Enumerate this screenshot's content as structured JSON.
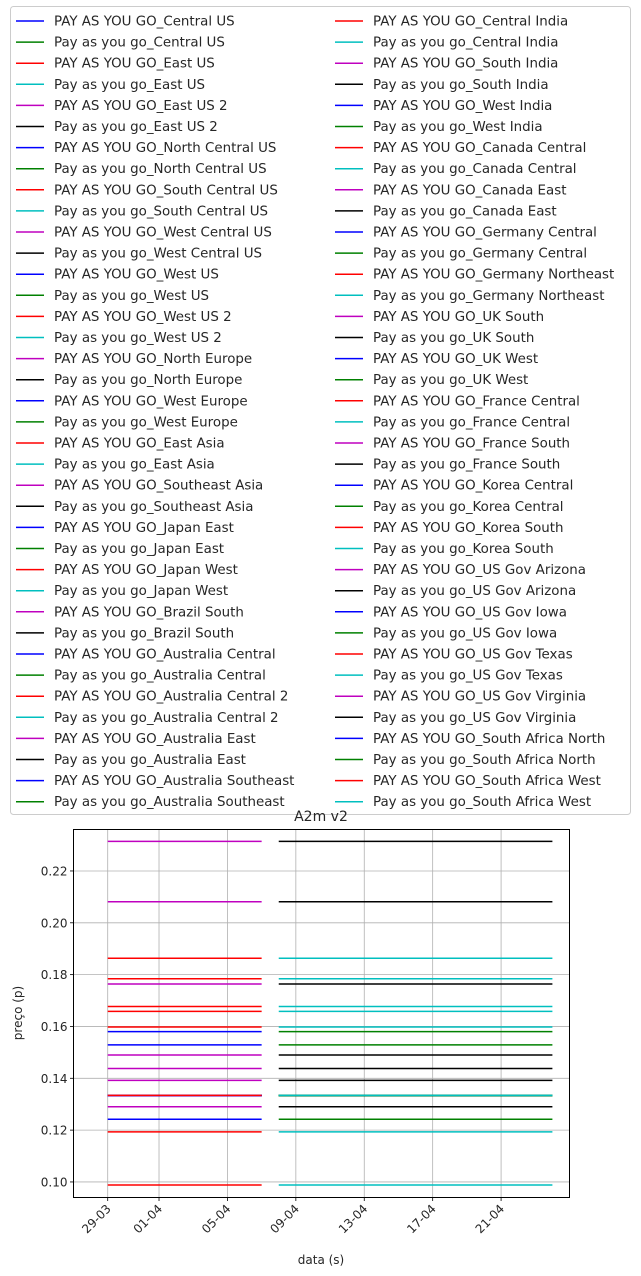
{
  "chart_data": {
    "type": "line",
    "title": "A2m v2",
    "xlabel": "data (s)",
    "ylabel": "preço (p)",
    "ylim": [
      0.094,
      0.236
    ],
    "yticks": [
      0.1,
      0.12,
      0.14,
      0.16,
      0.18,
      0.2,
      0.22
    ],
    "ytick_labels": [
      "0.10",
      "0.12",
      "0.14",
      "0.16",
      "0.18",
      "0.20",
      "0.22"
    ],
    "xlim": [
      "2023-03-27",
      "2023-04-25"
    ],
    "xticks": [
      "2023-03-29",
      "2023-04-01",
      "2023-04-05",
      "2023-04-09",
      "2023-04-13",
      "2023-04-17",
      "2023-04-21"
    ],
    "xtick_labels": [
      "29-03",
      "01-04",
      "05-04",
      "09-04",
      "13-04",
      "17-04",
      "21-04"
    ],
    "grid": true,
    "legend_placement": "above plot, 2 columns",
    "segment_dates": {
      "pay_as_you_go_upper": [
        "2023-03-29",
        "2023-04-07"
      ],
      "pay_as_you_go_lower": [
        "2023-04-08",
        "2023-04-24"
      ]
    },
    "colors": {
      "blue": "#0000ff",
      "green": "#008000",
      "red": "#ff0000",
      "cyan": "#00bfbf",
      "magenta": "#bf00bf",
      "black": "#000000"
    },
    "series": [
      {
        "name": "PAY AS YOU GO_Central US",
        "color": "blue",
        "value": 0.1334
      },
      {
        "name": "Pay as you go_Central US",
        "color": "green",
        "value": 0.1334
      },
      {
        "name": "PAY AS YOU GO_East US",
        "color": "red",
        "value": 0.1334
      },
      {
        "name": "Pay as you go_East US",
        "color": "cyan",
        "value": 0.1334
      },
      {
        "name": "PAY AS YOU GO_East US 2",
        "color": "magenta",
        "value": 0.1334
      },
      {
        "name": "Pay as you go_East US 2",
        "color": "black",
        "value": 0.1334
      },
      {
        "name": "PAY AS YOU GO_North Central US",
        "color": "blue",
        "value": 0.1334
      },
      {
        "name": "Pay as you go_North Central US",
        "color": "green",
        "value": 0.1334
      },
      {
        "name": "PAY AS YOU GO_South Central US",
        "color": "red",
        "value": 0.1334
      },
      {
        "name": "Pay as you go_South Central US",
        "color": "cyan",
        "value": 0.1334
      },
      {
        "name": "PAY AS YOU GO_West Central US",
        "color": "magenta",
        "value": 0.1334
      },
      {
        "name": "Pay as you go_West Central US",
        "color": "black",
        "value": 0.1334
      },
      {
        "name": "PAY AS YOU GO_West US",
        "color": "blue",
        "value": 0.1334
      },
      {
        "name": "Pay as you go_West US",
        "color": "green",
        "value": 0.1334
      },
      {
        "name": "PAY AS YOU GO_West US 2",
        "color": "red",
        "value": 0.1334
      },
      {
        "name": "Pay as you go_West US 2",
        "color": "cyan",
        "value": 0.1334
      },
      {
        "name": "PAY AS YOU GO_North Europe",
        "color": "magenta",
        "value": 0.1392
      },
      {
        "name": "Pay as you go_North Europe",
        "color": "black",
        "value": 0.1392
      },
      {
        "name": "PAY AS YOU GO_West Europe",
        "color": "blue",
        "value": 0.1529
      },
      {
        "name": "Pay as you go_West Europe",
        "color": "green",
        "value": 0.1529
      },
      {
        "name": "PAY AS YOU GO_East Asia",
        "color": "red",
        "value": 0.1784
      },
      {
        "name": "Pay as you go_East Asia",
        "color": "cyan",
        "value": 0.1784
      },
      {
        "name": "PAY AS YOU GO_Southeast Asia",
        "color": "magenta",
        "value": 0.1764
      },
      {
        "name": "Pay as you go_Southeast Asia",
        "color": "black",
        "value": 0.1764
      },
      {
        "name": "PAY AS YOU GO_Japan East",
        "color": "blue",
        "value": 0.158
      },
      {
        "name": "Pay as you go_Japan East",
        "color": "green",
        "value": 0.158
      },
      {
        "name": "PAY AS YOU GO_Japan West",
        "color": "red",
        "value": 0.1863
      },
      {
        "name": "Pay as you go_Japan West",
        "color": "cyan",
        "value": 0.1863
      },
      {
        "name": "PAY AS YOU GO_Brazil South",
        "color": "magenta",
        "value": 0.2314
      },
      {
        "name": "Pay as you go_Brazil South",
        "color": "black",
        "value": 0.2314
      },
      {
        "name": "PAY AS YOU GO_Australia Central",
        "color": "blue",
        "value": 0.1334
      },
      {
        "name": "Pay as you go_Australia Central",
        "color": "green",
        "value": 0.1334
      },
      {
        "name": "PAY AS YOU GO_Australia Central 2",
        "color": "red",
        "value": 0.1598
      },
      {
        "name": "Pay as you go_Australia Central 2",
        "color": "cyan",
        "value": 0.1598
      },
      {
        "name": "PAY AS YOU GO_Australia East",
        "color": "magenta",
        "value": 0.149
      },
      {
        "name": "Pay as you go_Australia East",
        "color": "black",
        "value": 0.149
      },
      {
        "name": "PAY AS YOU GO_Australia Southeast",
        "color": "blue",
        "value": 0.1334
      },
      {
        "name": "Pay as you go_Australia Southeast",
        "color": "green",
        "value": 0.1334
      },
      {
        "name": "PAY AS YOU GO_Central India",
        "color": "red",
        "value": 0.1193
      },
      {
        "name": "Pay as you go_Central India",
        "color": "cyan",
        "value": 0.1193
      },
      {
        "name": "PAY AS YOU GO_South India",
        "color": "magenta",
        "value": 0.1334
      },
      {
        "name": "Pay as you go_South India",
        "color": "black",
        "value": 0.1334
      },
      {
        "name": "PAY AS YOU GO_West India",
        "color": "blue",
        "value": 0.1242
      },
      {
        "name": "Pay as you go_West India",
        "color": "green",
        "value": 0.1242
      },
      {
        "name": "PAY AS YOU GO_Canada Central",
        "color": "red",
        "value": 0.1334
      },
      {
        "name": "Pay as you go_Canada Central",
        "color": "cyan",
        "value": 0.1334
      },
      {
        "name": "PAY AS YOU GO_Canada East",
        "color": "magenta",
        "value": 0.1334
      },
      {
        "name": "Pay as you go_Canada East",
        "color": "black",
        "value": 0.1334
      },
      {
        "name": "PAY AS YOU GO_Germany Central",
        "color": "blue",
        "value": 0.1334
      },
      {
        "name": "Pay as you go_Germany Central",
        "color": "green",
        "value": 0.1334
      },
      {
        "name": "PAY AS YOU GO_Germany Northeast",
        "color": "red",
        "value": 0.1334
      },
      {
        "name": "Pay as you go_Germany Northeast",
        "color": "cyan",
        "value": 0.1334
      },
      {
        "name": "PAY AS YOU GO_UK South",
        "color": "magenta",
        "value": 0.1438
      },
      {
        "name": "Pay as you go_UK South",
        "color": "black",
        "value": 0.1438
      },
      {
        "name": "PAY AS YOU GO_UK West",
        "color": "blue",
        "value": 0.1334
      },
      {
        "name": "Pay as you go_UK West",
        "color": "green",
        "value": 0.1334
      },
      {
        "name": "PAY AS YOU GO_France Central",
        "color": "red",
        "value": 0.1677
      },
      {
        "name": "Pay as you go_France Central",
        "color": "cyan",
        "value": 0.1677
      },
      {
        "name": "PAY AS YOU GO_France South",
        "color": "magenta",
        "value": 0.2081
      },
      {
        "name": "Pay as you go_France South",
        "color": "black",
        "value": 0.2081
      },
      {
        "name": "PAY AS YOU GO_Korea Central",
        "color": "blue",
        "value": 0.1334
      },
      {
        "name": "Pay as you go_Korea Central",
        "color": "green",
        "value": 0.1334
      },
      {
        "name": "PAY AS YOU GO_Korea South",
        "color": "red",
        "value": 0.1658
      },
      {
        "name": "Pay as you go_Korea South",
        "color": "cyan",
        "value": 0.1658
      },
      {
        "name": "PAY AS YOU GO_US Gov Arizona",
        "color": "magenta",
        "value": 0.129
      },
      {
        "name": "Pay as you go_US Gov Arizona",
        "color": "black",
        "value": 0.129
      },
      {
        "name": "PAY AS YOU GO_US Gov Iowa",
        "color": "blue",
        "value": 0.1334
      },
      {
        "name": "Pay as you go_US Gov Iowa",
        "color": "green",
        "value": 0.1334
      },
      {
        "name": "PAY AS YOU GO_US Gov Texas",
        "color": "red",
        "value": 0.0988
      },
      {
        "name": "Pay as you go_US Gov Texas",
        "color": "cyan",
        "value": 0.0988
      },
      {
        "name": "PAY AS YOU GO_US Gov Virginia",
        "color": "magenta",
        "value": 0.1334
      },
      {
        "name": "Pay as you go_US Gov Virginia",
        "color": "black",
        "value": 0.1334
      },
      {
        "name": "PAY AS YOU GO_South Africa North",
        "color": "blue",
        "value": 0.1334
      },
      {
        "name": "Pay as you go_South Africa North",
        "color": "green",
        "value": 0.1334
      },
      {
        "name": "PAY AS YOU GO_South Africa West",
        "color": "red",
        "value": 0.1334
      },
      {
        "name": "Pay as you go_South Africa West",
        "color": "cyan",
        "value": 0.1334
      }
    ]
  }
}
